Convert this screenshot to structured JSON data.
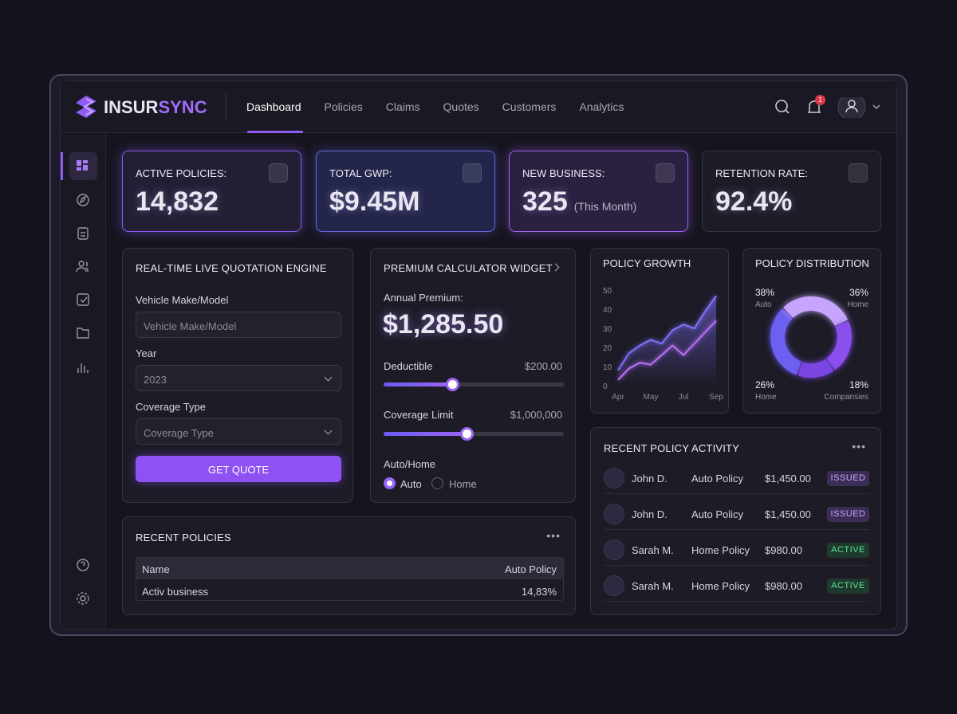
{
  "header": {
    "brand_a": "INSUR",
    "brand_b": "SYNC",
    "notifications": "1"
  },
  "nav": [
    "Dashboard",
    "Policies",
    "Claims",
    "Quotes",
    "Customers",
    "Analytics"
  ],
  "kpis": [
    {
      "label": "ACTIVE POLICIES:",
      "value": "14,832"
    },
    {
      "label": "TOTAL GWP:",
      "value": "$9.45M"
    },
    {
      "label": "NEW BUSINESS:",
      "value": "325",
      "note": "(This Month)"
    },
    {
      "label": "RETENTION RATE:",
      "value": "92.4%"
    }
  ],
  "quote_engine": {
    "title": "REAL-TIME LIVE QUOTATION ENGINE",
    "fields": [
      {
        "label": "Vehicle Make/Model",
        "value": "Vehicle Make/Model"
      },
      {
        "label": "Year",
        "value": "2023"
      },
      {
        "label": "Coverage Type",
        "value": "Coverage Type"
      }
    ],
    "button": "GET QUOTE"
  },
  "calculator": {
    "title": "PREMIUM CALCULATOR WIDGET",
    "premium_label": "Annual Premium:",
    "premium": "$1,285.50",
    "deductible_label": "Deductible",
    "deductible": "$200.00",
    "coverage_label": "Coverage Limit",
    "coverage": "$1,000,000",
    "option_label": "Auto/Home",
    "options": [
      "Auto",
      "Home"
    ]
  },
  "chart_data": [
    {
      "type": "line",
      "title": "POLICY GROWTH",
      "categories": [
        "Apr",
        null,
        null,
        "May",
        null,
        null,
        "Jul",
        null,
        null,
        "Sep"
      ],
      "series": [
        {
          "color": "#7d6df5",
          "values": [
            8,
            17,
            21,
            24,
            22,
            29,
            32,
            30,
            39,
            47
          ]
        },
        {
          "color": "#b46ef2",
          "values": [
            3,
            9,
            12,
            11,
            16,
            21,
            16,
            22,
            28,
            34
          ]
        }
      ],
      "ylim": [
        0,
        50
      ],
      "yticks": [
        0,
        10,
        20,
        30,
        40,
        50
      ]
    },
    {
      "type": "pie",
      "title": "POLICY DISTRIBUTION",
      "categories": [
        "Auto",
        "Home",
        "Home",
        "Compansies"
      ],
      "values": [
        38,
        36,
        26,
        18
      ],
      "value_labels": [
        "38%",
        "36%",
        "26%",
        "18%"
      ],
      "colors": [
        "#6d5ff0",
        "#c7a5ff",
        "#8b4ff0",
        "#7a45e0"
      ]
    }
  ],
  "recent_policies": {
    "title": "RECENT POLICIES",
    "header": [
      "Name",
      "Auto Policy"
    ],
    "rows": [
      [
        "Activ business",
        "14,83%"
      ]
    ]
  },
  "activity": {
    "title": "RECENT POLICY ACTIVITY",
    "rows": [
      {
        "name": "John D.",
        "type": "Auto Policy",
        "amount": "$1,450.00",
        "status": "ISSUED"
      },
      {
        "name": "John D.",
        "type": "Auto Policy",
        "amount": "$1,450.00",
        "status": "ISSUED"
      },
      {
        "name": "Sarah M.",
        "type": "Home Policy",
        "amount": "$980.00",
        "status": "ACTIVE"
      },
      {
        "name": "Sarah M.",
        "type": "Home Policy",
        "amount": "$980.00",
        "status": "ACTIVE"
      }
    ]
  }
}
